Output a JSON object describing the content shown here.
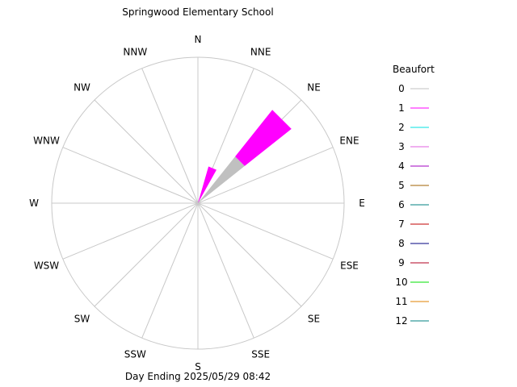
{
  "chart_data": {
    "type": "windrose",
    "title": "Springwood Elementary School",
    "footer": "Day Ending 2025/05/29 08:42",
    "directions": [
      "N",
      "NNE",
      "NE",
      "ENE",
      "E",
      "ESE",
      "SE",
      "SSE",
      "S",
      "SSW",
      "SW",
      "WSW",
      "W",
      "WNW",
      "NW",
      "NNW"
    ],
    "grid": true,
    "legend_title": "Beaufort",
    "legend_placement": "right",
    "beaufort": [
      {
        "level": "0",
        "color": "#c0c0c0"
      },
      {
        "level": "1",
        "color": "#ff00ff"
      },
      {
        "level": "2",
        "color": "#00e0e0"
      },
      {
        "level": "3",
        "color": "#e060e0"
      },
      {
        "level": "4",
        "color": "#a000c0"
      },
      {
        "level": "5",
        "color": "#a06000"
      },
      {
        "level": "6",
        "color": "#008080"
      },
      {
        "level": "7",
        "color": "#c00000"
      },
      {
        "level": "8",
        "color": "#000080"
      },
      {
        "level": "9",
        "color": "#b00020"
      },
      {
        "level": "10",
        "color": "#00e000"
      },
      {
        "level": "11",
        "color": "#e08000"
      },
      {
        "level": "12",
        "color": "#008080"
      }
    ],
    "max_value": 100,
    "petals": [
      {
        "direction": "NNE",
        "segments": [
          {
            "level": "1",
            "from": 0,
            "to": 32
          }
        ]
      },
      {
        "direction": "NE",
        "segments": [
          {
            "level": "0",
            "from": 0,
            "to": 50
          },
          {
            "level": "1",
            "from": 50,
            "to": 100
          }
        ]
      }
    ]
  }
}
